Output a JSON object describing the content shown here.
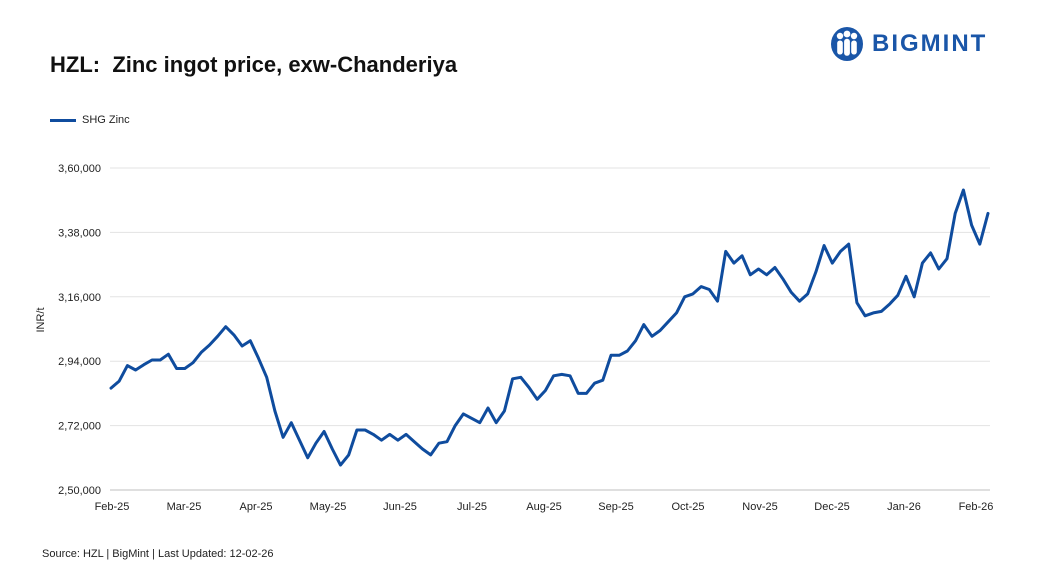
{
  "title": "HZL:  Zinc ingot price, exw-Chanderiya",
  "logo": {
    "text": "BIGMINT",
    "icon": "people-icon",
    "color": "#1a56a8"
  },
  "source": "Source: HZL | BigMint | Last Updated: 12-02-26",
  "chart_data": {
    "type": "line",
    "ylabel": "INR/t",
    "ylim": [
      250000,
      360000
    ],
    "yticks": [
      250000,
      272000,
      294000,
      316000,
      338000,
      360000
    ],
    "ytick_labels": [
      "2,50,000",
      "2,72,000",
      "2,94,000",
      "3,16,000",
      "3,38,000",
      "3,60,000"
    ],
    "xtick_labels": [
      "Feb-25",
      "Mar-25",
      "Apr-25",
      "May-25",
      "Jun-25",
      "Jul-25",
      "Aug-25",
      "Sep-25",
      "Oct-25",
      "Nov-25",
      "Dec-25",
      "Jan-26",
      "Feb-26"
    ],
    "grid": "horizontal",
    "legend": "top-left",
    "series": [
      {
        "name": "SHG Zinc",
        "color": "#0f4c9e",
        "values": [
          284800,
          287200,
          292500,
          291000,
          292800,
          294400,
          294400,
          296400,
          291500,
          291500,
          293500,
          297000,
          299500,
          302500,
          305800,
          303000,
          299200,
          301000,
          295000,
          288500,
          277000,
          268000,
          273000,
          267000,
          261000,
          266000,
          270000,
          264000,
          258500,
          262000,
          270500,
          270500,
          269000,
          267000,
          269000,
          267000,
          269000,
          266500,
          264000,
          262000,
          266000,
          266500,
          272000,
          276000,
          274500,
          273000,
          278000,
          273000,
          277000,
          288000,
          288500,
          285000,
          281000,
          284000,
          289000,
          289500,
          289000,
          283000,
          283000,
          286500,
          287500,
          296000,
          296000,
          297500,
          301000,
          306500,
          302500,
          304500,
          307500,
          310500,
          316000,
          317000,
          319500,
          318500,
          314500,
          331500,
          327500,
          330000,
          323500,
          325500,
          323500,
          326000,
          322000,
          317500,
          314500,
          317000,
          324500,
          333500,
          327500,
          331500,
          334000,
          314000,
          309500,
          310500,
          311000,
          313500,
          316500,
          323000,
          316000,
          327500,
          331000,
          325500,
          329000,
          344500,
          352500,
          340500,
          334000,
          344500
        ]
      }
    ]
  }
}
